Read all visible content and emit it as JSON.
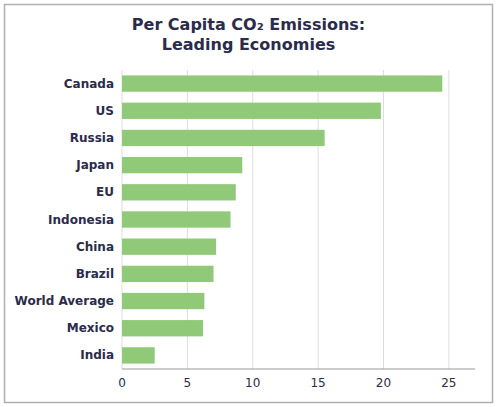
{
  "chart_data": {
    "type": "bar",
    "orientation": "horizontal",
    "title": "Per Capita CO₂ Emissions:\nLeading Economies",
    "categories": [
      "India",
      "Mexico",
      "World Average",
      "Brazil",
      "China",
      "Indonesia",
      "EU",
      "Japan",
      "Russia",
      "US",
      "Canada"
    ],
    "values": [
      2.5,
      6.2,
      6.3,
      7.0,
      7.2,
      8.3,
      8.7,
      9.2,
      15.5,
      19.8,
      24.5
    ],
    "color": "#90c978",
    "xlim": [
      0,
      27
    ],
    "xticks": [
      0,
      5,
      10,
      15,
      20,
      25
    ],
    "grid": true
  }
}
